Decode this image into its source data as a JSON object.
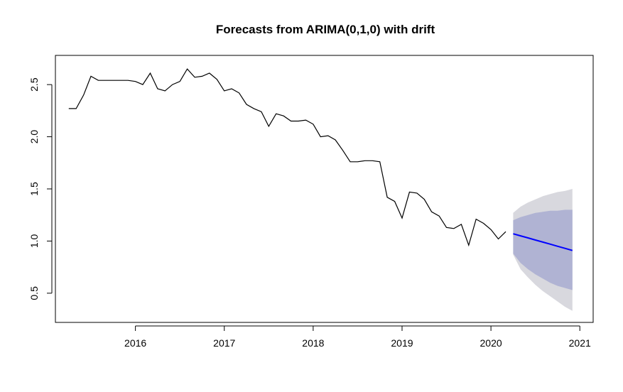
{
  "chart_data": {
    "type": "line",
    "title": "Forecasts from ARIMA(0,1,0) with drift",
    "xlabel": "",
    "ylabel": "",
    "xlim": [
      2015.1,
      2021.15
    ],
    "ylim": [
      0.22,
      2.78
    ],
    "x_ticks": [
      2016,
      2017,
      2018,
      2019,
      2020,
      2021
    ],
    "x_tick_labels": [
      "2016",
      "2017",
      "2018",
      "2019",
      "2020",
      "2021"
    ],
    "y_ticks": [
      0.5,
      1.0,
      1.5,
      2.0,
      2.5
    ],
    "y_tick_labels": [
      "0.5",
      "1.0",
      "1.5",
      "2.0",
      "2.5"
    ],
    "grid": false,
    "colors": {
      "history": "#000000",
      "forecast": "#0000ff",
      "band80": "#b0b3d3",
      "band95": "#d8d8de"
    },
    "history": {
      "x": [
        2015.25,
        2015.333,
        2015.417,
        2015.5,
        2015.583,
        2015.667,
        2015.75,
        2015.833,
        2015.917,
        2016.0,
        2016.083,
        2016.167,
        2016.25,
        2016.333,
        2016.417,
        2016.5,
        2016.583,
        2016.667,
        2016.75,
        2016.833,
        2016.917,
        2017.0,
        2017.083,
        2017.167,
        2017.25,
        2017.333,
        2017.417,
        2017.5,
        2017.583,
        2017.667,
        2017.75,
        2017.833,
        2017.917,
        2018.0,
        2018.083,
        2018.167,
        2018.25,
        2018.333,
        2018.417,
        2018.5,
        2018.583,
        2018.667,
        2018.75,
        2018.833,
        2018.917,
        2019.0,
        2019.083,
        2019.167,
        2019.25,
        2019.333,
        2019.417,
        2019.5,
        2019.583,
        2019.667,
        2019.75,
        2019.833,
        2019.917,
        2020.0,
        2020.083,
        2020.167
      ],
      "y": [
        2.27,
        2.27,
        2.4,
        2.58,
        2.54,
        2.54,
        2.54,
        2.54,
        2.54,
        2.53,
        2.5,
        2.61,
        2.46,
        2.44,
        2.5,
        2.53,
        2.65,
        2.57,
        2.58,
        2.61,
        2.55,
        2.44,
        2.46,
        2.42,
        2.31,
        2.27,
        2.24,
        2.1,
        2.22,
        2.2,
        2.15,
        2.15,
        2.16,
        2.12,
        2.0,
        2.01,
        1.97,
        1.87,
        1.76,
        1.76,
        1.77,
        1.77,
        1.76,
        1.42,
        1.38,
        1.22,
        1.47,
        1.46,
        1.4,
        1.28,
        1.24,
        1.13,
        1.12,
        1.16,
        0.96,
        1.21,
        1.17,
        1.11,
        1.02,
        1.09
      ]
    },
    "forecast": {
      "x": [
        2020.25,
        2020.333,
        2020.417,
        2020.5,
        2020.583,
        2020.667,
        2020.75,
        2020.833,
        2020.917
      ],
      "mean": [
        1.07,
        1.05,
        1.03,
        1.01,
        0.99,
        0.97,
        0.95,
        0.93,
        0.91
      ],
      "lo80": [
        0.88,
        0.79,
        0.73,
        0.68,
        0.64,
        0.6,
        0.57,
        0.55,
        0.53
      ],
      "hi80": [
        1.2,
        1.23,
        1.25,
        1.27,
        1.28,
        1.29,
        1.29,
        1.3,
        1.3
      ],
      "lo95": [
        0.87,
        0.73,
        0.65,
        0.58,
        0.52,
        0.47,
        0.42,
        0.37,
        0.33
      ],
      "hi95": [
        1.27,
        1.33,
        1.37,
        1.4,
        1.43,
        1.45,
        1.47,
        1.48,
        1.5
      ]
    }
  }
}
